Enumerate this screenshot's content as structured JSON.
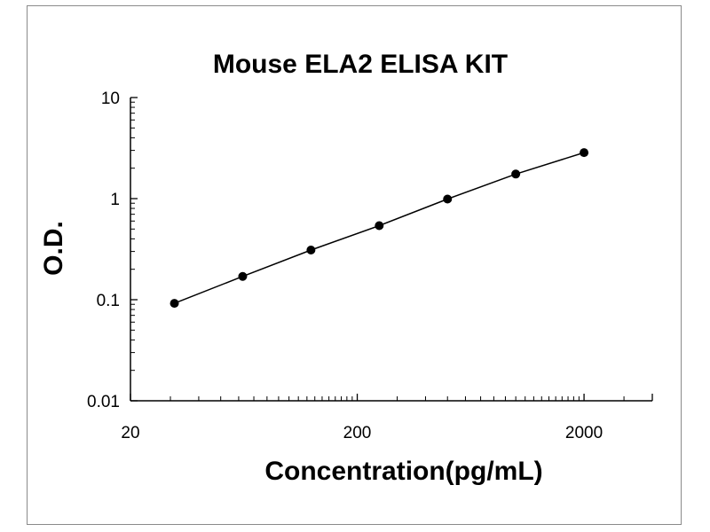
{
  "chart_data": {
    "type": "scatter",
    "title": "Mouse ELA2 ELISA KIT",
    "xlabel": "Concentration(pg/mL)",
    "ylabel": "O.D.",
    "x_scale": "log",
    "y_scale": "log",
    "xlim": [
      20,
      4000
    ],
    "ylim": [
      0.01,
      10
    ],
    "x_ticks": [
      20,
      200,
      2000
    ],
    "x_tick_labels": [
      "20",
      "200",
      "2000"
    ],
    "y_ticks": [
      0.01,
      0.1,
      1,
      10
    ],
    "y_tick_labels": [
      "0.01",
      "0.1",
      "1",
      "10"
    ],
    "grid": false,
    "line_color": "#000000",
    "marker_color": "#000000",
    "series": [
      {
        "x": [
          31.25,
          62.5,
          125,
          250,
          500,
          1000,
          2000
        ],
        "y": [
          0.092,
          0.17,
          0.31,
          0.54,
          0.99,
          1.75,
          2.85
        ],
        "fit": "line"
      }
    ]
  }
}
